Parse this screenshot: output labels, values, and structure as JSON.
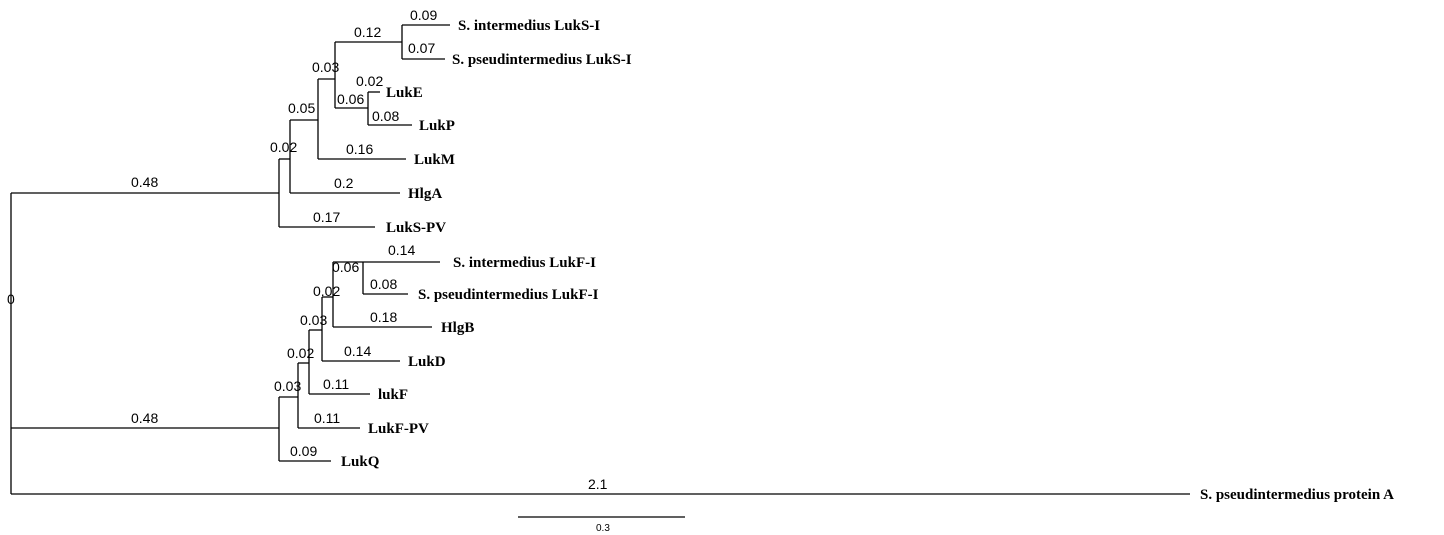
{
  "tree": {
    "taxa": [
      "S. intermedius LukS-I",
      "S. pseudintermedius LukS-I",
      "LukE",
      "LukP",
      "LukM",
      "HlgA",
      "LukS-PV",
      "S. intermedius LukF-I",
      "S. pseudintermedius LukF-I",
      "HlgB",
      "LukD",
      "lukF",
      "LukF-PV",
      "LukQ",
      "S. pseudintermedius protein A"
    ],
    "terminal_branch_lengths": [
      "0.09",
      "0.07",
      "0.02",
      "0.08",
      "0.16",
      "0.2",
      "0.17",
      "0.14",
      "0.08",
      "0.18",
      "0.14",
      "0.11",
      "0.11",
      "0.09",
      "2.1"
    ],
    "internal_branch_lengths": {
      "root": "0",
      "lukS_clade": "0.48",
      "lukS_02": "0.02",
      "lukS_05": "0.05",
      "lukS_03": "0.03",
      "lukS_12": "0.12",
      "lukE_P_06": "0.06",
      "lukF_clade": "0.48",
      "lukF_03a": "0.03",
      "lukF_02a": "0.02",
      "lukF_03b": "0.03",
      "lukF_02b": "0.02",
      "lukF_06": "0.06"
    },
    "scale_bar": {
      "label": "0.3"
    }
  }
}
